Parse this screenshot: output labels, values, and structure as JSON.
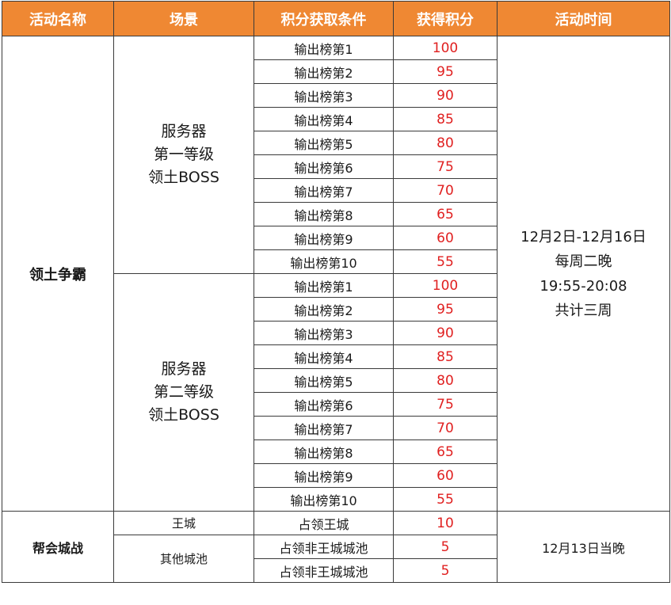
{
  "colors": {
    "header_bg": "#ef8833",
    "header_text": "#ffffff",
    "score_text": "#e02020",
    "border": "#3a3a3a"
  },
  "headers": [
    "活动名称",
    "场景",
    "积分获取条件",
    "获得积分",
    "活动时间"
  ],
  "territory": {
    "name": "领土争霸",
    "time_lines": [
      "12月2日-12月16日",
      "每周二晚",
      "19:55-20:08",
      "共计三周"
    ],
    "scenes": [
      {
        "name_lines": [
          "服务器",
          "第一等级",
          "领土BOSS"
        ],
        "rows": [
          {
            "condition": "输出榜第1",
            "points": "100"
          },
          {
            "condition": "输出榜第2",
            "points": "95"
          },
          {
            "condition": "输出榜第3",
            "points": "90"
          },
          {
            "condition": "输出榜第4",
            "points": "85"
          },
          {
            "condition": "输出榜第5",
            "points": "80"
          },
          {
            "condition": "输出榜第6",
            "points": "75"
          },
          {
            "condition": "输出榜第7",
            "points": "70"
          },
          {
            "condition": "输出榜第8",
            "points": "65"
          },
          {
            "condition": "输出榜第9",
            "points": "60"
          },
          {
            "condition": "输出榜第10",
            "points": "55"
          }
        ]
      },
      {
        "name_lines": [
          "服务器",
          "第二等级",
          "领土BOSS"
        ],
        "rows": [
          {
            "condition": "输出榜第1",
            "points": "100"
          },
          {
            "condition": "输出榜第2",
            "points": "95"
          },
          {
            "condition": "输出榜第3",
            "points": "90"
          },
          {
            "condition": "输出榜第4",
            "points": "85"
          },
          {
            "condition": "输出榜第5",
            "points": "80"
          },
          {
            "condition": "输出榜第6",
            "points": "75"
          },
          {
            "condition": "输出榜第7",
            "points": "70"
          },
          {
            "condition": "输出榜第8",
            "points": "65"
          },
          {
            "condition": "输出榜第9",
            "points": "60"
          },
          {
            "condition": "输出榜第10",
            "points": "55"
          }
        ]
      }
    ]
  },
  "guild": {
    "name": "帮会城战",
    "time": "12月13日当晚",
    "scenes": [
      {
        "name": "王城",
        "rows": [
          {
            "condition": "占领王城",
            "points": "10"
          }
        ]
      },
      {
        "name": "其他城池",
        "rows": [
          {
            "condition": "占领非王城城池",
            "points": "5"
          },
          {
            "condition": "占领非王城城池",
            "points": "5"
          }
        ]
      }
    ]
  }
}
